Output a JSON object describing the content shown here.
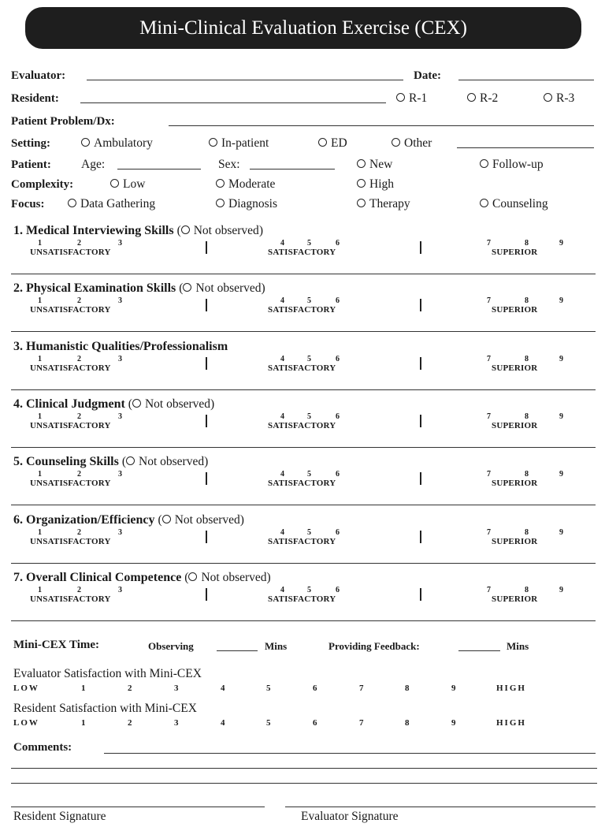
{
  "title": "Mini-Clinical Evaluation Exercise (CEX)",
  "header": {
    "evaluator_label": "Evaluator:",
    "date_label": "Date:",
    "resident_label": "Resident:",
    "resident_levels": [
      "R-1",
      "R-2",
      "R-3"
    ],
    "problem_label": "Patient Problem/Dx:",
    "setting_label": "Setting:",
    "setting_options": [
      "Ambulatory",
      "In-patient",
      "ED",
      "Other"
    ],
    "patient_label": "Patient:",
    "age_label": "Age:",
    "sex_label": "Sex:",
    "patient_options": [
      "New",
      "Follow-up"
    ],
    "complexity_label": "Complexity:",
    "complexity_options": [
      "Low",
      "Moderate",
      "High"
    ],
    "focus_label": "Focus:",
    "focus_options": [
      "Data Gathering",
      "Diagnosis",
      "Therapy",
      "Counseling"
    ]
  },
  "scale": {
    "numbers": [
      "1",
      "2",
      "3",
      "4",
      "5",
      "6",
      "7",
      "8",
      "9"
    ],
    "labels": [
      "UNSATISFACTORY",
      "SATISFACTORY",
      "SUPERIOR"
    ]
  },
  "sections": [
    {
      "title": "1. Medical Interviewing Skills",
      "not_observed": "Not observed"
    },
    {
      "title": "2. Physical Examination Skills",
      "not_observed": "Not observed"
    },
    {
      "title": "3. Humanistic Qualities/Professionalism",
      "not_observed": null
    },
    {
      "title": "4. Clinical Judgment",
      "not_observed": "Not observed"
    },
    {
      "title": "5. Counseling Skills",
      "not_observed": "Not observed"
    },
    {
      "title": "6. Organization/Efficiency",
      "not_observed": "Not observed"
    },
    {
      "title": "7. Overall Clinical Competence",
      "not_observed": "Not observed"
    }
  ],
  "time": {
    "label": "Mini-CEX Time:",
    "observing": "Observing",
    "mins1": "Mins",
    "feedback": "Providing Feedback:",
    "mins2": "Mins"
  },
  "satisfaction": [
    {
      "title": "Evaluator Satisfaction with Mini-CEX",
      "low": "LOW",
      "high": "HIGH"
    },
    {
      "title": "Resident Satisfaction with Mini-CEX",
      "low": "LOW",
      "high": "HIGH"
    }
  ],
  "comments_label": "Comments:",
  "signatures": {
    "resident": "Resident Signature",
    "evaluator": "Evaluator Signature"
  }
}
